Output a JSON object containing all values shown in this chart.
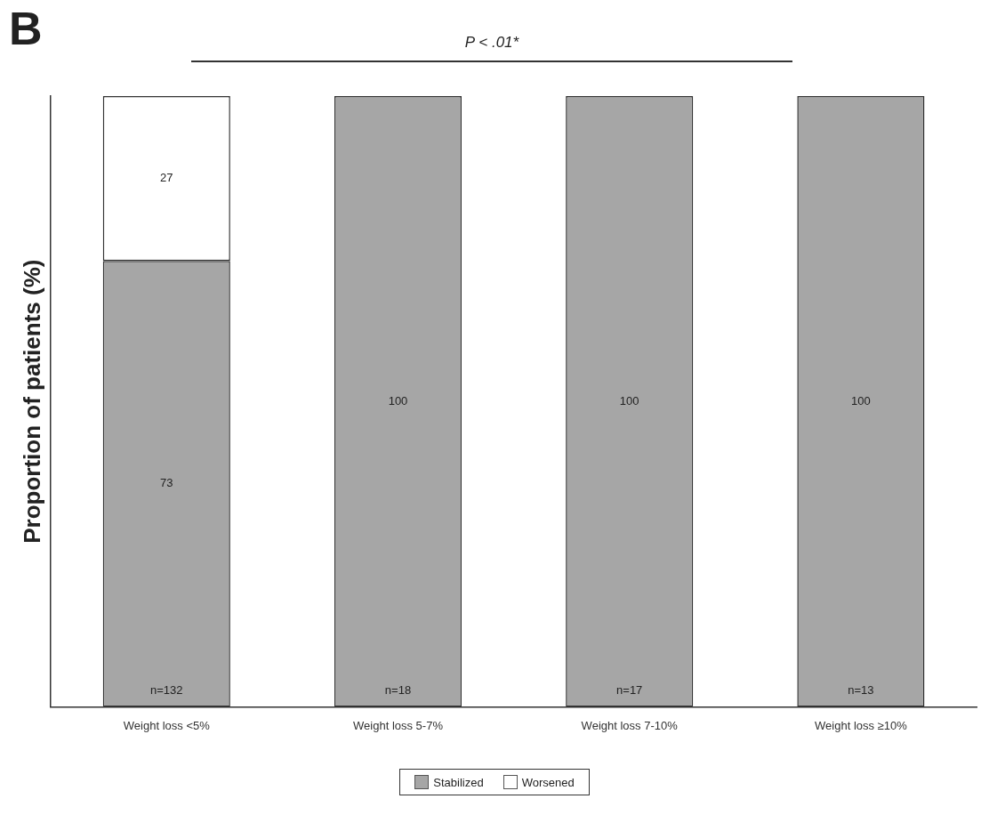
{
  "chart_data": {
    "type": "bar",
    "stacked": true,
    "ylabel": "Proportion of patients (%)",
    "categories": [
      "Weight loss <5%",
      "Weight loss 5-7%",
      "Weight loss 7-10%",
      "Weight loss ≥10%"
    ],
    "series": [
      {
        "name": "Stabilized",
        "color": "#a6a6a6",
        "values": [
          73,
          100,
          100,
          100
        ],
        "value_labels": [
          "73",
          "100",
          "100",
          "100"
        ]
      },
      {
        "name": "Worsened",
        "color": "#ffffff",
        "values": [
          27,
          0,
          0,
          0
        ],
        "value_labels": [
          "27",
          null,
          null,
          null
        ]
      }
    ],
    "ylim": [
      0,
      100
    ],
    "tick_labels": "x",
    "grid": false,
    "legend": "bottom",
    "annotations": [
      "B",
      "P < .01*",
      {
        "text": "n=132",
        "x": "Weight loss <5%",
        "y": 0
      },
      {
        "text": "n=18",
        "x": "Weight loss 5-7%",
        "y": 0
      },
      {
        "text": "n=17",
        "x": "Weight loss 7-10%",
        "y": 0
      },
      {
        "text": "n=13",
        "x": "Weight loss ≥10%",
        "y": 0
      }
    ]
  }
}
